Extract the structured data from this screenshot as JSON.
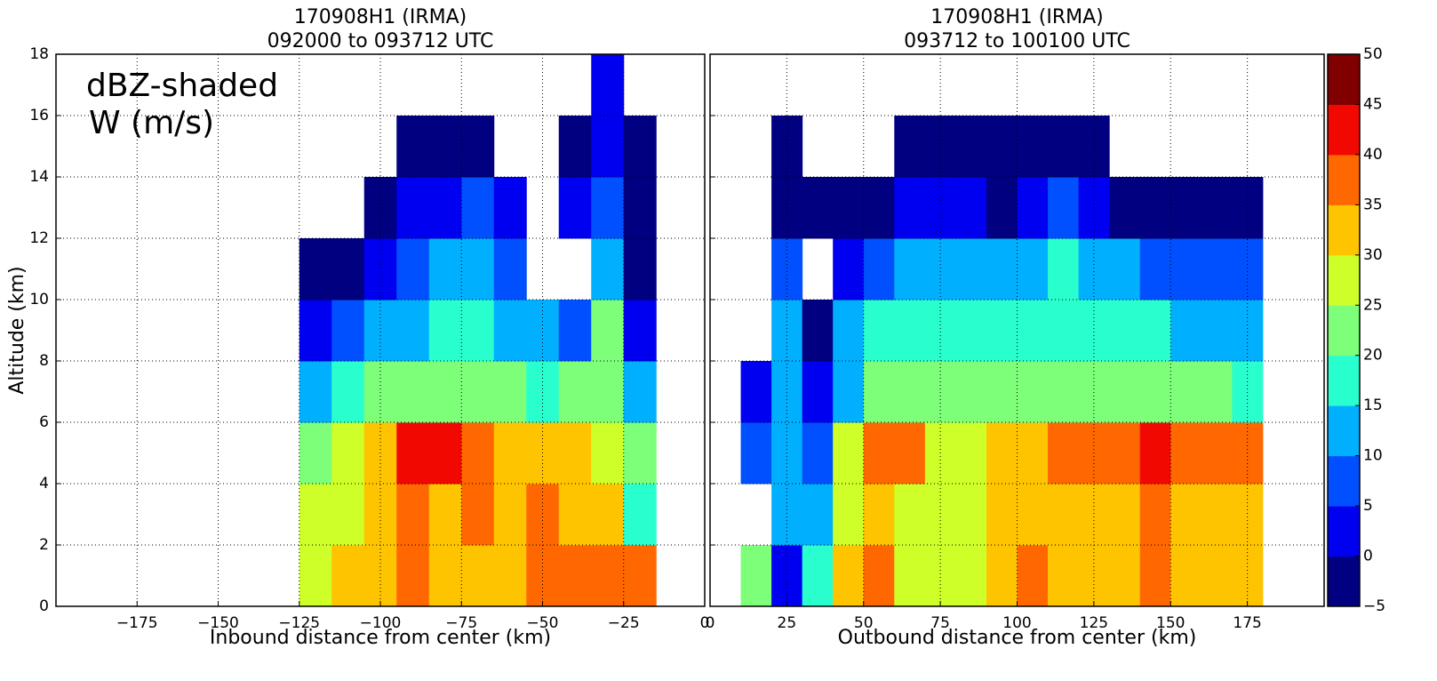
{
  "chart_data": [
    {
      "type": "heatmap",
      "title": [
        "170908H1 (IRMA)",
        "092000 to 093712 UTC"
      ],
      "annotation": [
        "dBZ-shaded",
        "W (m/s)"
      ],
      "xlabel": "Inbound distance from center (km)",
      "ylabel": "Altitude (km)",
      "xlim": [
        -200,
        0
      ],
      "xticks": [
        {
          "value": -175,
          "label": "−175"
        },
        {
          "value": -150,
          "label": "−150"
        },
        {
          "value": -125,
          "label": "−125"
        },
        {
          "value": -100,
          "label": "−100"
        },
        {
          "value": -75,
          "label": "−75"
        },
        {
          "value": -50,
          "label": "−50"
        },
        {
          "value": -25,
          "label": "−25"
        },
        0
      ],
      "ylim": [
        0,
        18
      ],
      "yticks": [
        0,
        2,
        4,
        6,
        8,
        10,
        12,
        14,
        16,
        18
      ],
      "grid": true,
      "x": [
        -120,
        -110,
        -100,
        -90,
        -80,
        -70,
        -60,
        -50,
        -40,
        -30,
        -20
      ],
      "y": [
        1,
        3,
        5,
        7,
        9,
        11,
        13,
        15,
        17
      ],
      "values": [
        [
          28,
          30,
          31,
          36,
          33,
          34,
          32,
          36,
          37,
          37,
          38
        ],
        [
          27,
          29,
          31,
          37,
          34,
          37,
          31,
          37,
          34,
          32,
          15
        ],
        [
          24,
          28,
          32,
          40,
          40,
          38,
          30,
          32,
          30,
          28,
          20
        ],
        [
          12,
          17,
          20,
          22,
          22,
          21,
          20,
          19,
          20,
          22,
          12
        ],
        [
          2,
          6,
          10,
          13,
          16,
          17,
          14,
          10,
          5,
          20,
          2
        ],
        [
          -3,
          -2,
          2,
          8,
          12,
          10,
          6,
          null,
          null,
          10,
          -1
        ],
        [
          null,
          null,
          -2,
          0,
          3,
          5,
          2,
          null,
          2,
          6,
          -2
        ],
        [
          null,
          null,
          null,
          -2,
          -2,
          -1,
          null,
          null,
          -2,
          3,
          -2
        ],
        [
          null,
          null,
          null,
          null,
          null,
          null,
          null,
          null,
          null,
          0,
          null
        ]
      ]
    },
    {
      "type": "heatmap",
      "title": [
        "170908H1 (IRMA)",
        "093712 to 100100 UTC"
      ],
      "xlabel": "Outbound distance from center (km)",
      "xlim": [
        0,
        200
      ],
      "xticks": [
        0,
        25,
        50,
        75,
        100,
        125,
        150,
        175
      ],
      "ylim": [
        0,
        18
      ],
      "yticks": [
        0,
        2,
        4,
        6,
        8,
        10,
        12,
        14,
        16,
        18
      ],
      "grid": true,
      "x": [
        15,
        25,
        35,
        45,
        55,
        65,
        75,
        85,
        95,
        105,
        115,
        125,
        135,
        145,
        155,
        165,
        175
      ],
      "y": [
        1,
        3,
        5,
        7,
        9,
        11,
        13,
        15
      ],
      "values": [
        [
          22,
          3,
          18,
          30,
          36,
          28,
          26,
          27,
          33,
          35,
          34,
          33,
          34,
          36,
          33,
          32,
          31
        ],
        [
          null,
          10,
          10,
          28,
          33,
          28,
          25,
          25,
          30,
          33,
          33,
          33,
          33,
          36,
          33,
          32,
          30
        ],
        [
          5,
          13,
          5,
          25,
          35,
          37,
          28,
          26,
          30,
          33,
          35,
          36,
          35,
          40,
          38,
          37,
          35
        ],
        [
          2,
          12,
          0,
          14,
          20,
          21,
          21,
          20,
          21,
          22,
          22,
          22,
          21,
          20,
          20,
          20,
          19
        ],
        [
          null,
          10,
          -2,
          10,
          15,
          18,
          19,
          18,
          17,
          18,
          19,
          18,
          17,
          15,
          14,
          13,
          12
        ],
        [
          null,
          5,
          null,
          2,
          8,
          12,
          14,
          12,
          10,
          13,
          15,
          12,
          10,
          8,
          7,
          6,
          5
        ],
        [
          null,
          -2,
          -3,
          -3,
          -2,
          0,
          2,
          0,
          -1,
          3,
          5,
          2,
          -2,
          -3,
          -3,
          -3,
          -2
        ],
        [
          null,
          -3,
          null,
          null,
          null,
          -3,
          -3,
          -3,
          -3,
          -3,
          -2,
          -3,
          null,
          null,
          null,
          null,
          null
        ]
      ],
      "colorbar": {
        "levels": [
          -5,
          0,
          5,
          10,
          15,
          20,
          25,
          30,
          35,
          40,
          45,
          50
        ],
        "ticks": [
          {
            "value": -5,
            "label": "−5"
          },
          0,
          5,
          10,
          15,
          20,
          25,
          30,
          35,
          40,
          45,
          50
        ],
        "colors": [
          "#000080",
          "#0000f0",
          "#0050ff",
          "#00b0ff",
          "#29ffce",
          "#7dff7a",
          "#ceff29",
          "#ffc400",
          "#ff6800",
          "#f10800",
          "#800000"
        ]
      }
    }
  ]
}
